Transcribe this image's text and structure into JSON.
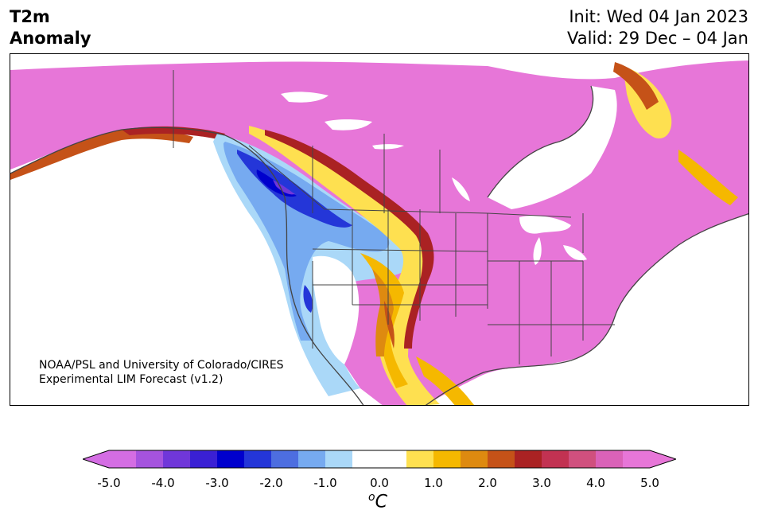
{
  "title": {
    "left_line1": "T2m",
    "left_line2": "Anomaly",
    "right_line1": "Init: Wed 04 Jan 2023",
    "right_line2": "Valid: 29 Dec – 04 Jan"
  },
  "credit": {
    "line1": "NOAA/PSL and University of Colorado/CIRES",
    "line2": "Experimental LIM Forecast (v1.2)"
  },
  "colorbar": {
    "unit_symbol": "o",
    "unit_letter": "C",
    "ticks": [
      "-5.0",
      "-4.0",
      "-3.0",
      "-2.0",
      "-1.0",
      "0.0",
      "1.0",
      "2.0",
      "3.0",
      "4.0",
      "5.0"
    ],
    "colors": [
      "#d46de3",
      "#a553de",
      "#7037d9",
      "#3a20d4",
      "#0000cd",
      "#2436d8",
      "#4d6ee0",
      "#76aaf0",
      "#aad8f8",
      "#ffffff",
      "#ffffff",
      "#fee050",
      "#f5b800",
      "#de8a10",
      "#c55218",
      "#aa2223",
      "#c23252",
      "#d0507e",
      "#da62b8",
      "#e776d8"
    ],
    "under_color": "#d46de3",
    "over_color": "#e776d8"
  },
  "map": {
    "background": "#e776d8",
    "land_border": "#444444"
  }
}
